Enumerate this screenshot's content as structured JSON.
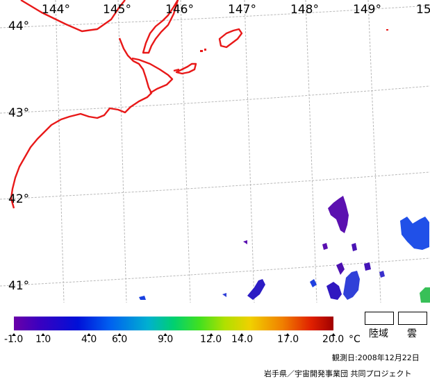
{
  "map": {
    "longitude_labels": [
      "144°",
      "145°",
      "146°",
      "147°",
      "148°",
      "149°",
      "15"
    ],
    "latitude_labels": [
      "44°",
      "43°",
      "42°",
      "41°"
    ],
    "colors": {
      "coastline": "#e81818",
      "graticule": "#b0b0b0",
      "sst_low": "#5b10b0",
      "sst_mid": "#2040e0"
    }
  },
  "legend": {
    "scale_labels": [
      "-1.0",
      "1.0",
      "4.0",
      "6.0",
      "9.0",
      "12.0",
      "14.0",
      "17.0",
      "20.0"
    ],
    "unit": "°C",
    "land_label": "陸域",
    "cloud_label": "雲",
    "gradient_colors": [
      "#6a00a8",
      "#3500c0",
      "#0010d8",
      "#0060f0",
      "#00b0d0",
      "#00d070",
      "#40e020",
      "#b0e000",
      "#f0d000",
      "#f08000",
      "#e02000",
      "#a00000"
    ]
  },
  "footer": {
    "date": "観測日:2008年12月22日",
    "credit": "岩手県／宇宙開発事業団 共同プロジェクト"
  }
}
